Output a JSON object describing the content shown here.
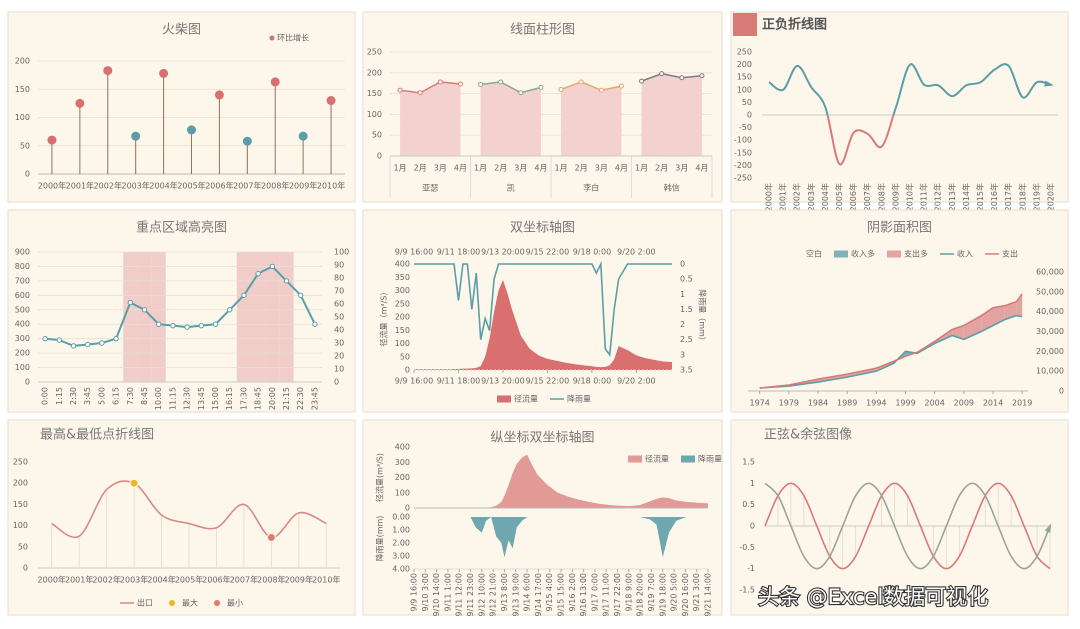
{
  "chart_data": [
    {
      "type": "lollipop",
      "title": "火柴图",
      "legend": "环比增长",
      "grid": true,
      "categories": [
        "2000年",
        "2001年",
        "2002年",
        "2003年",
        "2004年",
        "2005年",
        "2006年",
        "2007年",
        "2008年",
        "2009年",
        "2010年"
      ],
      "values": [
        60,
        125,
        183,
        67,
        178,
        78,
        140,
        58,
        163,
        67,
        130
      ],
      "colors": [
        "#d9706f",
        "#d9706f",
        "#d9706f",
        "#5b9ea8",
        "#d9706f",
        "#5b9ea8",
        "#d9706f",
        "#5b9ea8",
        "#d9706f",
        "#5b9ea8",
        "#d9706f"
      ],
      "stem_color": "#8a7560",
      "ylim": [
        0,
        200
      ],
      "yticks": [
        0,
        50,
        100,
        150,
        200
      ]
    },
    {
      "type": "area",
      "title": "线面柱形图",
      "grid": true,
      "fill": "#f3d1cf",
      "categories": [
        "1月",
        "2月",
        "3月",
        "4月"
      ],
      "groups": [
        {
          "name": "亚瑟",
          "color": "#d97a76",
          "values": [
            158,
            152,
            178,
            173
          ]
        },
        {
          "name": "凯",
          "color": "#8fa88a",
          "values": [
            172,
            178,
            152,
            165
          ]
        },
        {
          "name": "李白",
          "color": "#e0a96d",
          "values": [
            160,
            178,
            158,
            168
          ]
        },
        {
          "name": "韩信",
          "color": "#7d7d7d",
          "values": [
            180,
            198,
            188,
            193
          ]
        }
      ],
      "ylim": [
        0,
        250
      ],
      "yticks": [
        0,
        50,
        100,
        150,
        200,
        250
      ]
    },
    {
      "type": "line",
      "title": "正负折线图",
      "title_marker": "#d97a76",
      "smooth": true,
      "arrow": true,
      "grid": false,
      "label_rotation": 90,
      "categories": [
        "2000年",
        "2001年",
        "2002年",
        "2003年",
        "2004年",
        "2005年",
        "2006年",
        "2007年",
        "2008年",
        "2009年",
        "2010年",
        "2011年",
        "2012年",
        "2013年",
        "2014年",
        "2015年",
        "2016年",
        "2017年",
        "2018年",
        "2019年",
        "2020年"
      ],
      "series": [
        {
          "color": "#5b9ea8",
          "negative_color": "#d97a76",
          "values": [
            130,
            100,
            195,
            110,
            30,
            -195,
            -70,
            -75,
            -125,
            30,
            200,
            120,
            118,
            75,
            118,
            130,
            180,
            195,
            70,
            130,
            120
          ]
        }
      ],
      "ylim": [
        -250,
        250
      ],
      "yticks": [
        -250,
        -200,
        -150,
        -100,
        -50,
        0,
        50,
        100,
        150,
        200,
        250
      ]
    },
    {
      "type": "combo",
      "title": "重点区域高亮图",
      "grid": true,
      "label_rotation": 90,
      "categories": [
        "0:00",
        "1:15",
        "2:30",
        "3:45",
        "5:00",
        "6:15",
        "7:30",
        "8:45",
        "10:00",
        "11:15",
        "12:30",
        "13:45",
        "15:00",
        "16:15",
        "17:30",
        "18:45",
        "20:00",
        "21:15",
        "22:30",
        "23:45"
      ],
      "series": [
        {
          "color": "#5b9ea8",
          "values": [
            300,
            290,
            250,
            260,
            270,
            300,
            550,
            500,
            400,
            390,
            380,
            390,
            400,
            500,
            600,
            750,
            800,
            700,
            600,
            400
          ]
        },
        {
          "axis": "y2",
          "color": "#f1cdca",
          "values": [
            0,
            0,
            0,
            0,
            0,
            0,
            100,
            100,
            100,
            0,
            0,
            0,
            0,
            0,
            100,
            100,
            100,
            100,
            0,
            0
          ]
        }
      ],
      "ylim": [
        0,
        900
      ],
      "yticks": [
        0,
        100,
        200,
        300,
        400,
        500,
        600,
        700,
        800,
        900
      ],
      "y2lim": [
        0,
        100
      ],
      "y2ticks": [
        0,
        10,
        20,
        30,
        40,
        50,
        60,
        70,
        80,
        90,
        100
      ]
    },
    {
      "type": "dual",
      "title": "双坐标轴图",
      "ylabel": "径流量（m³/S）",
      "y2label": "降雨量（mm）",
      "y2_reversed": true,
      "x": [
        0,
        10,
        20,
        30,
        40,
        45,
        50,
        55,
        60,
        65,
        70,
        75,
        80,
        85,
        90,
        95,
        100,
        105,
        110,
        120,
        130,
        140,
        150,
        160,
        170,
        180,
        190,
        200,
        205,
        210,
        215,
        220,
        225,
        230,
        240,
        250,
        260,
        270,
        280,
        290
      ],
      "series": [
        {
          "name": "径流量",
          "color": "#d9706f",
          "values": [
            3,
            3,
            3,
            3,
            3,
            4,
            4,
            5,
            5,
            6,
            8,
            15,
            50,
            120,
            220,
            300,
            340,
            290,
            230,
            130,
            80,
            55,
            42,
            35,
            28,
            22,
            18,
            14,
            12,
            11,
            12,
            18,
            40,
            90,
            75,
            55,
            45,
            38,
            32,
            30
          ]
        },
        {
          "name": "降雨量",
          "color": "#5b9ea8",
          "axis": "y2",
          "values": [
            0,
            0,
            0,
            0,
            0,
            0,
            1.2,
            0,
            0,
            1.5,
            0.3,
            2.5,
            1.8,
            2.2,
            0.5,
            0,
            0,
            0,
            0,
            0,
            0,
            0,
            0,
            0,
            0,
            0,
            0,
            0,
            0.3,
            0,
            2.8,
            3,
            1.5,
            0.5,
            0,
            0,
            0,
            0,
            0,
            0
          ]
        }
      ],
      "xlim": [
        0,
        290
      ],
      "xticks": [
        {
          "value": 0,
          "label": "9/9 16:00"
        },
        {
          "value": 50,
          "label": "9/11 18:00"
        },
        {
          "value": 100,
          "label": "9/13 20:00"
        },
        {
          "value": 150,
          "label": "9/15 22:00"
        },
        {
          "value": 200,
          "label": "9/18 0:00"
        },
        {
          "value": 250,
          "label": "9/20 2:00"
        }
      ],
      "ylim": [
        0,
        400
      ],
      "yticks": [
        0,
        50,
        100,
        150,
        200,
        250,
        300,
        350,
        400
      ],
      "y2lim": [
        0,
        3.5
      ],
      "y2ticks": [
        0,
        0.5,
        1,
        1.5,
        2,
        2.5,
        3,
        3.5
      ]
    },
    {
      "type": "band",
      "title": "阴影面积图",
      "areas": [
        {
          "name": "空白"
        },
        {
          "name": "收入多",
          "color": "#7fb2b9"
        },
        {
          "name": "支出多",
          "color": "#e3a3a0"
        }
      ],
      "x": [
        1974,
        1979,
        1984,
        1989,
        1994,
        1997,
        1999,
        2001,
        2004,
        2007,
        2009,
        2012,
        2014,
        2016,
        2018,
        2019
      ],
      "series": [
        {
          "name": "收入",
          "color": "#5b9ea8",
          "values": [
            1500,
            2500,
            4500,
            7000,
            10000,
            14000,
            20000,
            19000,
            24000,
            28000,
            26000,
            30000,
            33000,
            36000,
            38000,
            37500
          ]
        },
        {
          "name": "支出",
          "color": "#d97a76",
          "values": [
            1500,
            3000,
            6000,
            8500,
            11500,
            15000,
            17500,
            19500,
            25000,
            31000,
            33000,
            38000,
            42000,
            43000,
            45000,
            49000
          ]
        }
      ],
      "xlim": [
        1972,
        2020
      ],
      "xticks": [
        1974,
        1979,
        1984,
        1989,
        1994,
        1999,
        2004,
        2009,
        2014,
        2019
      ],
      "ylim": [
        0,
        60000
      ],
      "yticks": [
        0,
        {
          "value": 10000,
          "label": "10,000"
        },
        {
          "value": 20000,
          "label": "20,000"
        },
        {
          "value": 30000,
          "label": "30,000"
        },
        {
          "value": 40000,
          "label": "40,000"
        },
        {
          "value": 50000,
          "label": "50,000"
        },
        {
          "value": 60000,
          "label": "60,000"
        }
      ]
    },
    {
      "type": "line",
      "title": "最高&最低点折线图",
      "smooth": true,
      "drop_lines": true,
      "grid": false,
      "categories": [
        "2000年",
        "2001年",
        "2002年",
        "2003年",
        "2004年",
        "2005年",
        "2006年",
        "2007年",
        "2008年",
        "2009年",
        "2010年"
      ],
      "series": [
        {
          "name": "出口",
          "color": "#d98a84",
          "values": [
            105,
            75,
            185,
            200,
            125,
            105,
            95,
            150,
            72,
            130,
            105
          ]
        },
        {
          "name": "最大",
          "color": "#f0b429",
          "marker": true,
          "values": [
            null,
            null,
            null,
            200,
            null,
            null,
            null,
            null,
            null,
            null,
            null
          ]
        },
        {
          "name": "最小",
          "color": "#e8776b",
          "marker": true,
          "values": [
            null,
            null,
            null,
            null,
            null,
            null,
            null,
            null,
            72,
            null,
            null
          ]
        }
      ],
      "ylim": [
        0,
        250
      ],
      "yticks": [
        0,
        50,
        100,
        150,
        200,
        250
      ]
    },
    {
      "type": "mirror",
      "title": "纵坐标双坐标轴图",
      "ylabel": "径流量(m³/S)",
      "y2label": "降雨量(mm)",
      "x": [
        0,
        11,
        22,
        33,
        44,
        55,
        60,
        66,
        70,
        75,
        80,
        85,
        88,
        92,
        96,
        100,
        105,
        110,
        115,
        120,
        130,
        140,
        150,
        160,
        170,
        180,
        190,
        200,
        210,
        220,
        230,
        236,
        242,
        248,
        255,
        265,
        275,
        286
      ],
      "series": [
        {
          "name": "径流量",
          "color": "#e29a97",
          "values": [
            0,
            0,
            0,
            0,
            0,
            0,
            0,
            2,
            3,
            5,
            15,
            40,
            80,
            150,
            230,
            290,
            330,
            350,
            280,
            220,
            150,
            100,
            75,
            55,
            40,
            28,
            20,
            15,
            12,
            20,
            45,
            60,
            70,
            65,
            50,
            40,
            35,
            30
          ]
        },
        {
          "name": "降雨量",
          "color": "#6ea7b0",
          "axis": "y2",
          "values": [
            0,
            0,
            0,
            0,
            0,
            0,
            0.8,
            1.2,
            0.3,
            0,
            1.5,
            2,
            3.1,
            1.8,
            2.4,
            0.8,
            0.3,
            0,
            0,
            0,
            0,
            0,
            0,
            0,
            0,
            0,
            0,
            0,
            0,
            0,
            0.2,
            0.6,
            3.1,
            1.2,
            0.3,
            0,
            0,
            0
          ]
        }
      ],
      "xlim": [
        0,
        286
      ],
      "xticks": [
        {
          "value": 0,
          "label": "9/9 16:00"
        },
        {
          "value": 11,
          "label": "9/10 3:00"
        },
        {
          "value": 22,
          "label": "9/10 14:00"
        },
        {
          "value": 33,
          "label": "9/11 1:00"
        },
        {
          "value": 44,
          "label": "9/11 12:00"
        },
        {
          "value": 55,
          "label": "9/11 23:00"
        },
        {
          "value": 66,
          "label": "9/12 10:00"
        },
        {
          "value": 77,
          "label": "9/12 21:00"
        },
        {
          "value": 88,
          "label": "9/13 8:00"
        },
        {
          "value": 99,
          "label": "9/13 19:00"
        },
        {
          "value": 110,
          "label": "9/14 6:00"
        },
        {
          "value": 121,
          "label": "9/14 17:00"
        },
        {
          "value": 132,
          "label": "9/15 4:00"
        },
        {
          "value": 143,
          "label": "9/15 15:00"
        },
        {
          "value": 154,
          "label": "9/16 2:00"
        },
        {
          "value": 165,
          "label": "9/16 13:00"
        },
        {
          "value": 176,
          "label": "9/17 0:00"
        },
        {
          "value": 187,
          "label": "9/17 11:00"
        },
        {
          "value": 198,
          "label": "9/17 22:00"
        },
        {
          "value": 209,
          "label": "9/18 9:00"
        },
        {
          "value": 220,
          "label": "9/18 20:00"
        },
        {
          "value": 231,
          "label": "9/19 7:00"
        },
        {
          "value": 242,
          "label": "9/19 18:00"
        },
        {
          "value": 253,
          "label": "9/20 5:00"
        },
        {
          "value": 264,
          "label": "9/20 16:00"
        },
        {
          "value": 275,
          "label": "9/21 3:00"
        },
        {
          "value": 286,
          "label": "9/21 14:00"
        }
      ],
      "ylim": [
        0,
        400
      ],
      "yticks": [
        0,
        100,
        200,
        300,
        400
      ],
      "y2lim": [
        0,
        4
      ],
      "y2ticks": [
        {
          "value": 0,
          "label": "0.00"
        },
        {
          "value": 1,
          "label": "1.00"
        },
        {
          "value": 2,
          "label": "2.00"
        },
        {
          "value": 3,
          "label": "3.00"
        },
        {
          "value": 4,
          "label": "4.00"
        }
      ]
    },
    {
      "type": "line",
      "title": "正弦&余弦图像",
      "smooth": true,
      "drop_lines": true,
      "arrow": true,
      "grid": false,
      "series": [
        {
          "color": "#d97a76",
          "values": [
            0,
            0.71,
            1,
            0.71,
            0,
            -0.71,
            -1,
            -0.71,
            0,
            0.71,
            1,
            0.71,
            0,
            -0.71,
            -1,
            -0.71,
            0,
            0.71,
            1,
            0.71,
            0,
            -0.71,
            -1
          ]
        },
        {
          "color": "#9aa59a",
          "values": [
            1,
            0.71,
            0,
            -0.71,
            -1,
            -0.71,
            0,
            0.71,
            1,
            0.71,
            0,
            -0.71,
            -1,
            -0.71,
            0,
            0.71,
            1,
            0.71,
            0,
            -0.71,
            -1,
            -0.71,
            0
          ]
        }
      ],
      "ylim": [
        -1.5,
        1.5
      ],
      "yticks": [
        -1.5,
        -1,
        -0.5,
        0,
        0.5,
        1,
        1.5
      ]
    }
  ],
  "watermark": "头条 @Excel数据可视化"
}
